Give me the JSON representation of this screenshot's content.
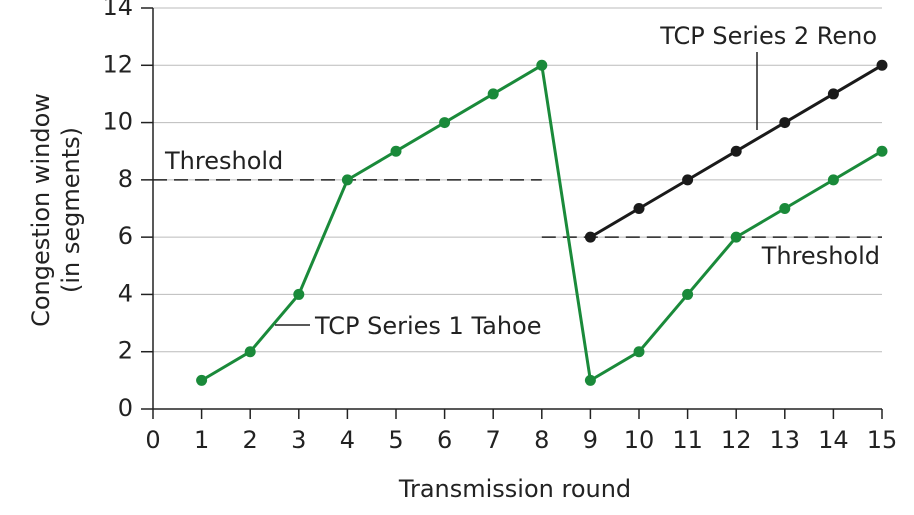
{
  "chart_data": {
    "type": "line",
    "xlabel": "Transmission round",
    "ylabel": [
      "Congestion window",
      "(in segments)"
    ],
    "xlim": [
      0,
      15
    ],
    "xticks": [
      0,
      1,
      2,
      3,
      4,
      5,
      6,
      7,
      8,
      9,
      10,
      11,
      12,
      13,
      14,
      15
    ],
    "ylim": [
      0,
      14
    ],
    "yticks": [
      0,
      2,
      4,
      6,
      8,
      10,
      12,
      14
    ],
    "grid": true,
    "series": [
      {
        "name": "TCP Series 1 Tahoe",
        "color": "#1a8a3a",
        "x": [
          1,
          2,
          3,
          4,
          5,
          6,
          7,
          8,
          9,
          10,
          11,
          12,
          13,
          14,
          15
        ],
        "values": [
          1,
          2,
          4,
          8,
          9,
          10,
          11,
          12,
          1,
          2,
          4,
          6,
          7,
          8,
          9
        ]
      },
      {
        "name": "TCP Series 2 Reno",
        "color": "#1a1a1a",
        "x": [
          9,
          10,
          11,
          12,
          13,
          14,
          15
        ],
        "values": [
          6,
          7,
          8,
          9,
          10,
          11,
          12
        ]
      }
    ],
    "thresholds": [
      {
        "label": "Threshold",
        "value": 8,
        "x": [
          0,
          8
        ]
      },
      {
        "label": "Threshold",
        "value": 6,
        "x": [
          8,
          15
        ]
      }
    ]
  }
}
